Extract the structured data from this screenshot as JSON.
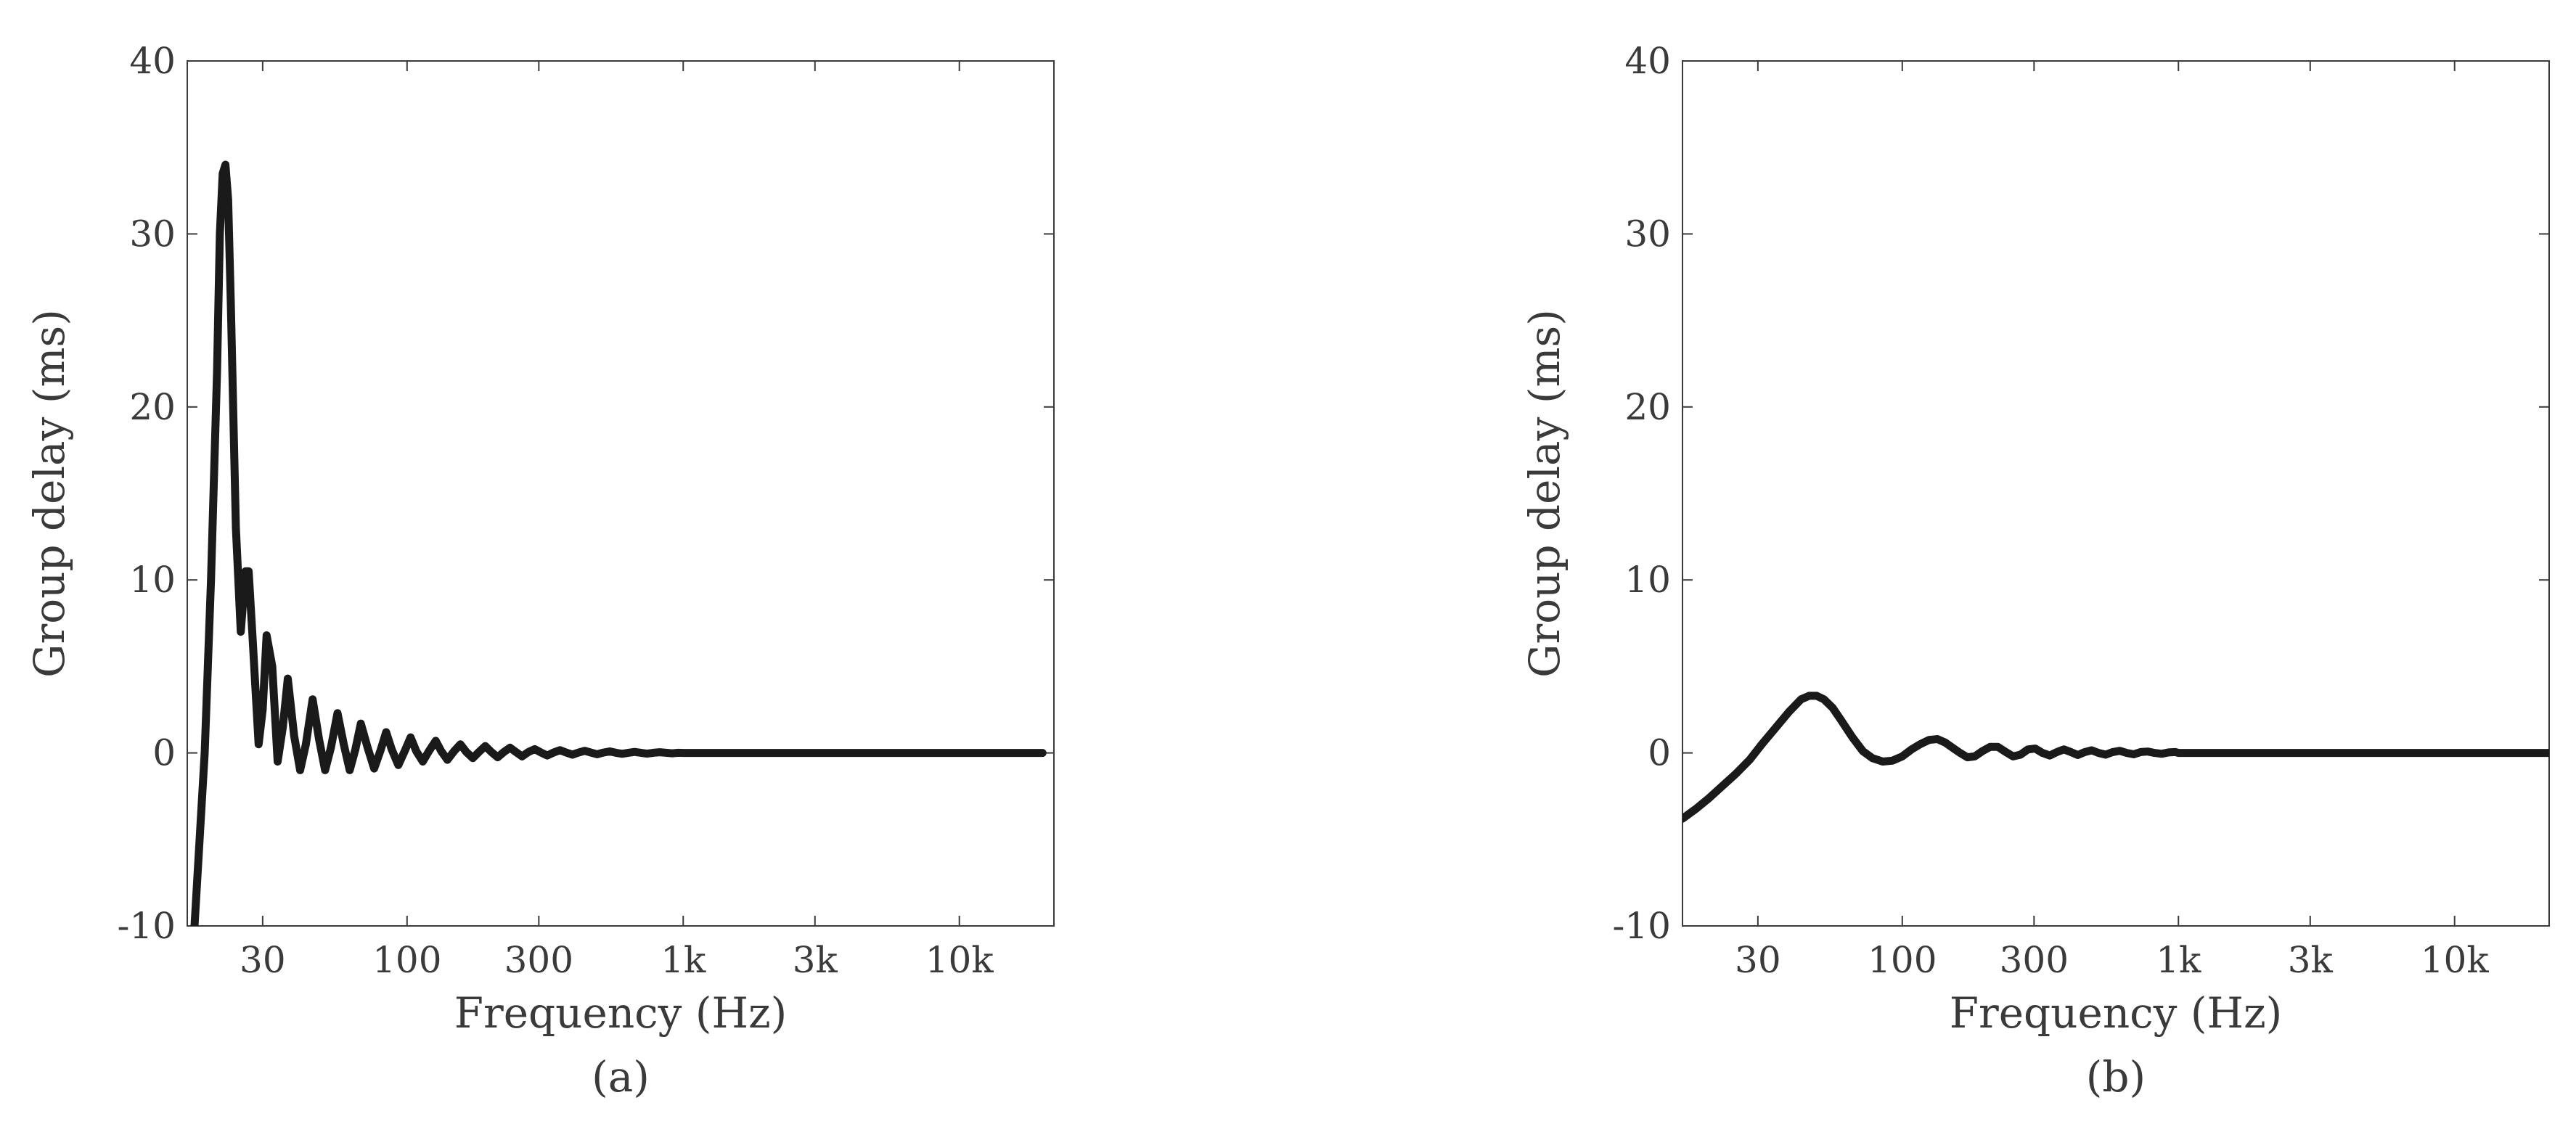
{
  "chart_data": [
    {
      "type": "line",
      "panel_label": "(a)",
      "xlabel": "Frequency (Hz)",
      "ylabel": "Group delay (ms)",
      "xscale": "log",
      "xlim": [
        16,
        22000
      ],
      "ylim": [
        -10,
        40
      ],
      "xticks": [
        {
          "value": 30,
          "label": "30"
        },
        {
          "value": 100,
          "label": "100"
        },
        {
          "value": 300,
          "label": "300"
        },
        {
          "value": 1000,
          "label": "1k"
        },
        {
          "value": 3000,
          "label": "3k"
        },
        {
          "value": 10000,
          "label": "10k"
        }
      ],
      "yticks": [
        {
          "value": -10,
          "label": "-10"
        },
        {
          "value": 0,
          "label": "0"
        },
        {
          "value": 10,
          "label": "10"
        },
        {
          "value": 20,
          "label": "20"
        },
        {
          "value": 30,
          "label": "30"
        },
        {
          "value": 40,
          "label": "40"
        }
      ],
      "grid": false,
      "series": [
        {
          "color": "#1a1a1a",
          "x": [
            17,
            18.5,
            19.5,
            20.5,
            21,
            21.5,
            22,
            22.5,
            23,
            24,
            25,
            26,
            26.7,
            27.5,
            29,
            30,
            31,
            32.5,
            34,
            35.5,
            37,
            39,
            41,
            43,
            45.5,
            48,
            50.5,
            53,
            56,
            59,
            62,
            65,
            68,
            72,
            76,
            80,
            84,
            88,
            93,
            98,
            103,
            108,
            114,
            120,
            127,
            133,
            140,
            148,
            156,
            164,
            173,
            182,
            192,
            202,
            213,
            224,
            236,
            248,
            261,
            275,
            290,
            305,
            322,
            340,
            358,
            377,
            397,
            418,
            440,
            463,
            488,
            514,
            542,
            571,
            601,
            633,
            667,
            703,
            740,
            780,
            822,
            866,
            912,
            961,
            1000,
            1200,
            1500,
            2000,
            3000,
            5000,
            10000,
            20000
          ],
          "y": [
            -10,
            0,
            10,
            22,
            30,
            33.5,
            34,
            32,
            26,
            13,
            7,
            10.5,
            10.5,
            7,
            0.5,
            2.5,
            6.8,
            5,
            -0.5,
            1.5,
            4.3,
            1,
            -1,
            0.5,
            3.1,
            0.8,
            -1,
            0.3,
            2.3,
            0.5,
            -1,
            0.2,
            1.7,
            0.3,
            -0.9,
            0.1,
            1.2,
            0.2,
            -0.7,
            0.1,
            0.9,
            0.1,
            -0.5,
            0.1,
            0.7,
            0.1,
            -0.4,
            0.1,
            0.5,
            0.05,
            -0.3,
            0.05,
            0.4,
            0.05,
            -0.25,
            0.05,
            0.3,
            0.05,
            -0.2,
            0.05,
            0.22,
            0.03,
            -0.15,
            0.03,
            0.16,
            0.02,
            -0.1,
            0.02,
            0.12,
            0.02,
            -0.08,
            0.02,
            0.09,
            0.01,
            -0.05,
            0.01,
            0.06,
            0.01,
            -0.04,
            0.01,
            0.04,
            0.01,
            -0.02,
            0.01,
            0,
            0,
            0,
            0,
            0,
            0,
            0,
            0
          ]
        }
      ]
    },
    {
      "type": "line",
      "panel_label": "(b)",
      "xlabel": "Frequency (Hz)",
      "ylabel": "Group delay (ms)",
      "xscale": "log",
      "xlim": [
        16,
        22000
      ],
      "ylim": [
        -10,
        40
      ],
      "xticks": [
        {
          "value": 30,
          "label": "30"
        },
        {
          "value": 100,
          "label": "100"
        },
        {
          "value": 300,
          "label": "300"
        },
        {
          "value": 1000,
          "label": "1k"
        },
        {
          "value": 3000,
          "label": "3k"
        },
        {
          "value": 10000,
          "label": "10k"
        }
      ],
      "yticks": [
        {
          "value": -10,
          "label": "-10"
        },
        {
          "value": 0,
          "label": "0"
        },
        {
          "value": 10,
          "label": "10"
        },
        {
          "value": 20,
          "label": "20"
        },
        {
          "value": 30,
          "label": "30"
        },
        {
          "value": 40,
          "label": "40"
        }
      ],
      "grid": false,
      "series": [
        {
          "color": "#1a1a1a",
          "x": [
            16,
            18,
            20,
            22,
            25,
            28,
            31,
            35,
            39,
            43,
            46,
            49,
            52,
            56,
            60,
            66,
            72,
            78,
            85,
            92,
            100,
            108,
            116,
            125,
            134,
            143,
            152,
            162,
            172,
            183,
            195,
            208,
            222,
            237,
            252,
            268,
            285,
            303,
            322,
            342,
            363,
            385,
            408,
            432,
            458,
            485,
            514,
            545,
            578,
            613,
            650,
            689,
            730,
            774,
            820,
            869,
            921,
            976,
            1000,
            1200,
            1500,
            2000,
            3000,
            5000,
            10000,
            22000
          ],
          "y": [
            -3.8,
            -3.2,
            -2.6,
            -2,
            -1.2,
            -0.4,
            0.5,
            1.5,
            2.4,
            3.1,
            3.3,
            3.3,
            3.1,
            2.6,
            1.9,
            0.9,
            0.1,
            -0.3,
            -0.5,
            -0.45,
            -0.2,
            0.2,
            0.5,
            0.75,
            0.8,
            0.6,
            0.3,
            0,
            -0.25,
            -0.2,
            0.1,
            0.35,
            0.35,
            0.05,
            -0.2,
            -0.1,
            0.2,
            0.25,
            0,
            -0.15,
            0.05,
            0.2,
            0.05,
            -0.12,
            0.05,
            0.15,
            0,
            -0.1,
            0.05,
            0.12,
            0,
            -0.08,
            0.05,
            0.08,
            0,
            -0.05,
            0.03,
            0.05,
            0,
            0,
            0,
            0,
            0,
            0,
            0,
            0
          ]
        }
      ]
    }
  ]
}
